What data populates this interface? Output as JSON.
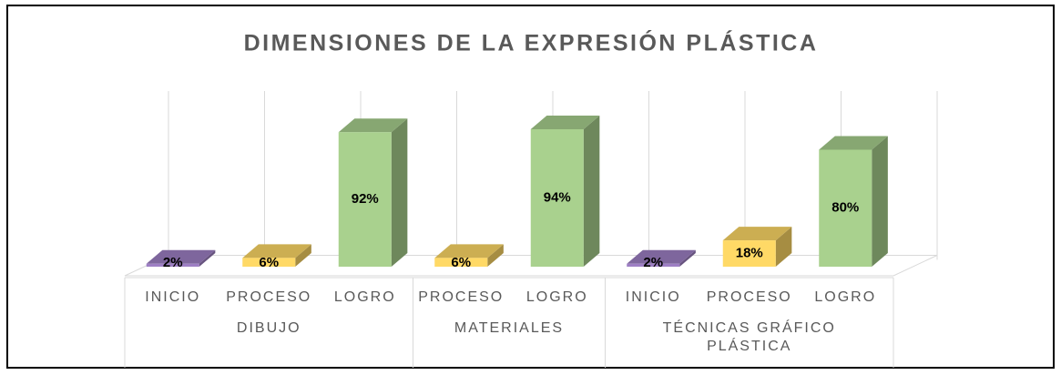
{
  "chart_data": {
    "type": "bar3d",
    "title": "DIMENSIONES DE LA EXPRESIÓN PLÁSTICA",
    "groups": [
      {
        "name": "DIBUJO",
        "categories": [
          "INICIO",
          "PROCESO",
          "LOGRO"
        ],
        "values": [
          2,
          6,
          92
        ],
        "value_labels": [
          "2%",
          "6%",
          "92%"
        ],
        "colors": [
          "#9e7fc4",
          "#ffd966",
          "#a9d18e"
        ]
      },
      {
        "name": "MATERIALES",
        "categories": [
          "PROCESO",
          "LOGRO"
        ],
        "values": [
          6,
          94
        ],
        "value_labels": [
          "6%",
          "94%"
        ],
        "colors": [
          "#ffd966",
          "#a9d18e"
        ]
      },
      {
        "name": "TÉCNICAS GRÁFICO PLÁSTICA",
        "categories": [
          "INICIO",
          "PROCESO",
          "LOGRO"
        ],
        "values": [
          2,
          18,
          80
        ],
        "value_labels": [
          "2%",
          "18%",
          "80%"
        ],
        "colors": [
          "#9e7fc4",
          "#ffd966",
          "#a9d18e"
        ]
      }
    ]
  }
}
